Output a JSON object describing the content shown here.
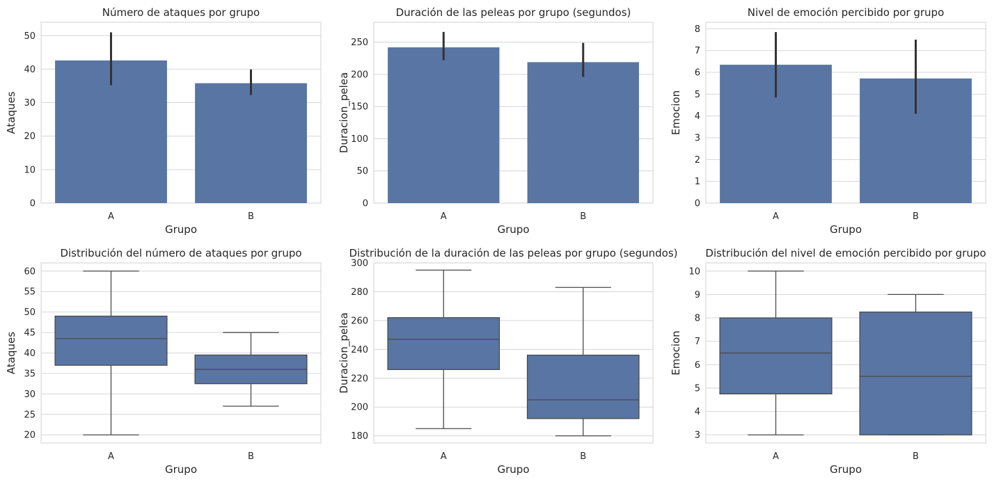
{
  "colors": {
    "bar": "#5975a4",
    "errorbar": "#333333",
    "line": "#4a4a4a"
  },
  "chart_data": [
    {
      "type": "bar",
      "title": "Número de ataques por grupo",
      "xlabel": "Grupo",
      "ylabel": "Ataques",
      "categories": [
        "A",
        "B"
      ],
      "values": [
        42.6,
        35.8
      ],
      "ci_low": [
        35.2,
        32.3
      ],
      "ci_high": [
        51.0,
        39.9
      ],
      "ylim": [
        0,
        54
      ],
      "yticks": [
        0,
        10,
        20,
        30,
        40,
        50
      ],
      "grid": true
    },
    {
      "type": "bar",
      "title": "Duración de las peleas por grupo (segundos)",
      "xlabel": "Grupo",
      "ylabel": "Duracion_pelea",
      "categories": [
        "A",
        "B"
      ],
      "values": [
        242,
        219
      ],
      "ci_low": [
        222,
        196
      ],
      "ci_high": [
        266,
        249
      ],
      "ylim": [
        0,
        281
      ],
      "yticks": [
        0,
        50,
        100,
        150,
        200,
        250
      ],
      "grid": true
    },
    {
      "type": "bar",
      "title": "Nivel de emoción percibido por grupo",
      "xlabel": "Grupo",
      "ylabel": "Emocion",
      "categories": [
        "A",
        "B"
      ],
      "values": [
        6.35,
        5.72
      ],
      "ci_low": [
        4.85,
        4.1
      ],
      "ci_high": [
        7.85,
        7.5
      ],
      "ylim": [
        0,
        8.3
      ],
      "yticks": [
        0,
        1,
        2,
        3,
        4,
        5,
        6,
        7,
        8
      ],
      "grid": true
    },
    {
      "type": "box",
      "title": "Distribución del número de ataques por grupo",
      "xlabel": "Grupo",
      "ylabel": "Ataques",
      "categories": [
        "A",
        "B"
      ],
      "boxes": [
        {
          "min": 20,
          "q1": 37,
          "median": 43.5,
          "q3": 49,
          "max": 60
        },
        {
          "min": 27,
          "q1": 32.5,
          "median": 36,
          "q3": 39.5,
          "max": 45
        }
      ],
      "ylim": [
        18,
        62
      ],
      "yticks": [
        20,
        25,
        30,
        35,
        40,
        45,
        50,
        55,
        60
      ],
      "grid": true
    },
    {
      "type": "box",
      "title": "Distribución de la duración de las peleas por grupo (segundos)",
      "xlabel": "Grupo",
      "ylabel": "Duracion_pelea",
      "categories": [
        "A",
        "B"
      ],
      "boxes": [
        {
          "min": 185,
          "q1": 226,
          "median": 247,
          "q3": 262,
          "max": 295
        },
        {
          "min": 180,
          "q1": 192,
          "median": 205,
          "q3": 236,
          "max": 283
        }
      ],
      "ylim": [
        175,
        300
      ],
      "yticks": [
        180,
        200,
        220,
        240,
        260,
        280,
        300
      ],
      "grid": true
    },
    {
      "type": "box",
      "title": "Distribución del nivel de emoción percibido por grupo",
      "xlabel": "Grupo",
      "ylabel": "Emocion",
      "categories": [
        "A",
        "B"
      ],
      "boxes": [
        {
          "min": 3,
          "q1": 4.75,
          "median": 6.5,
          "q3": 8,
          "max": 10
        },
        {
          "min": 3,
          "q1": 3,
          "median": 5.5,
          "q3": 8.25,
          "max": 9
        }
      ],
      "ylim": [
        2.65,
        10.35
      ],
      "yticks": [
        3,
        4,
        5,
        6,
        7,
        8,
        9,
        10
      ],
      "grid": true
    }
  ]
}
